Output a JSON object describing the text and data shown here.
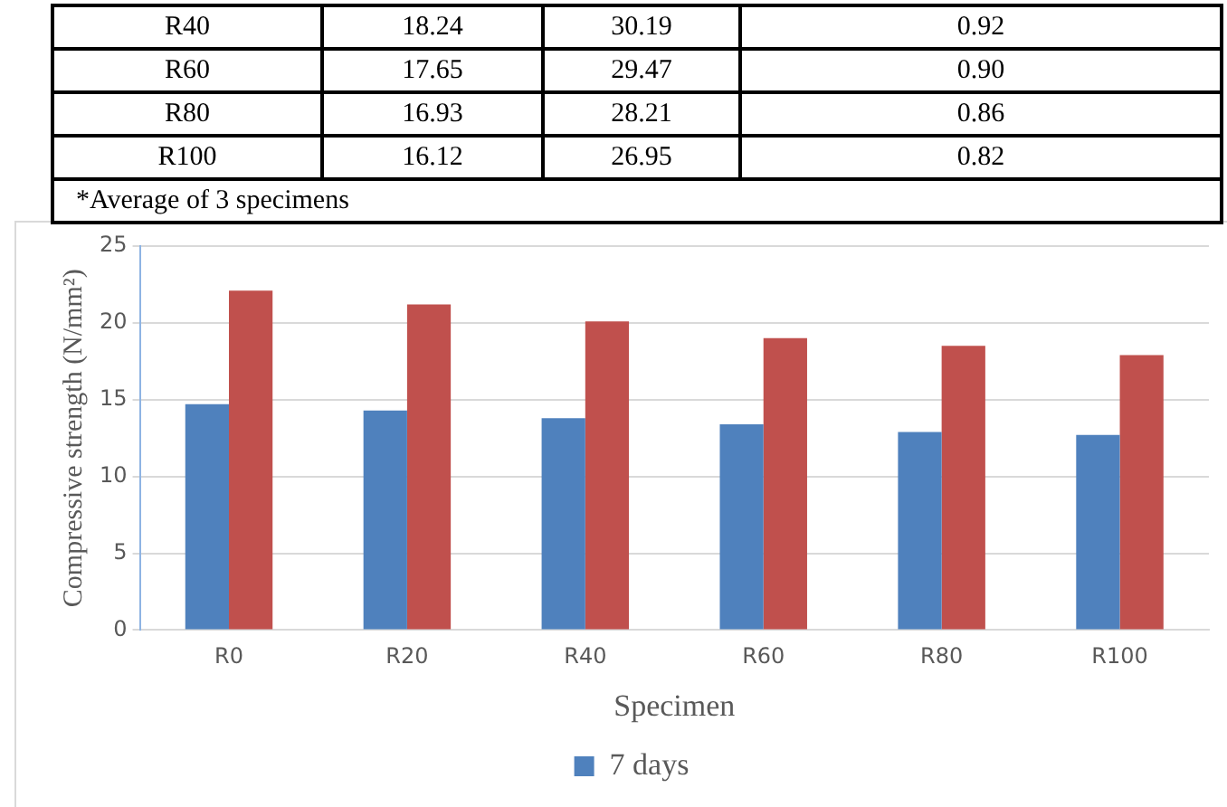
{
  "chart_data": {
    "type": "bar",
    "xlabel": "Specimen",
    "ylabel": "Compressive strength (N/mm²)",
    "categories": [
      "R0",
      "R20",
      "R40",
      "R60",
      "R80",
      "R100"
    ],
    "series": [
      {
        "name": "7 days",
        "color": "#4f81bd",
        "values": [
          14.7,
          14.3,
          13.8,
          13.4,
          12.9,
          12.7
        ]
      },
      {
        "color": "#c0504d",
        "values": [
          22.1,
          21.2,
          20.1,
          19.0,
          18.5,
          17.9
        ]
      }
    ],
    "ylim": [
      0,
      25
    ],
    "yticks": [
      0,
      5,
      10,
      15,
      20,
      25
    ],
    "grid": "y",
    "legend": "bottom",
    "annotations": [
      "R40",
      "18.24",
      "30.19",
      "0.92",
      "R60",
      "17.65",
      "29.47",
      "0.90",
      "R80",
      "16.93",
      "28.21",
      "0.86",
      "R100",
      "16.12",
      "26.95",
      "0.82",
      "*Average of 3 specimens"
    ]
  }
}
